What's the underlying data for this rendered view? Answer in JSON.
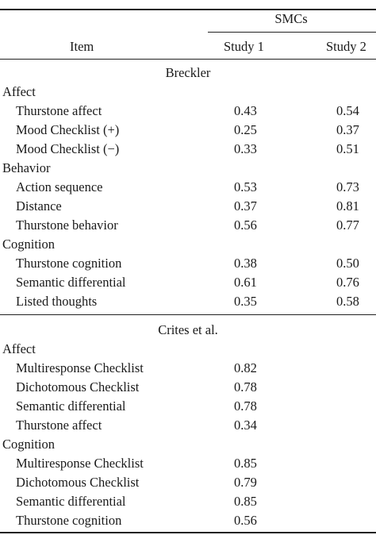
{
  "header": {
    "group_label": "SMCs",
    "item_label": "Item",
    "study1_label": "Study 1",
    "study2_label": "Study 2"
  },
  "sections": [
    {
      "title": "Breckler",
      "groups": [
        {
          "name": "Affect",
          "rows": [
            {
              "item": "Thurstone affect",
              "study1": "0.43",
              "study2": "0.54"
            },
            {
              "item": "Mood Checklist (+)",
              "study1": "0.25",
              "study2": "0.37"
            },
            {
              "item": "Mood Checklist (−)",
              "study1": "0.33",
              "study2": "0.51"
            }
          ]
        },
        {
          "name": "Behavior",
          "rows": [
            {
              "item": "Action sequence",
              "study1": "0.53",
              "study2": "0.73"
            },
            {
              "item": "Distance",
              "study1": "0.37",
              "study2": "0.81"
            },
            {
              "item": "Thurstone behavior",
              "study1": "0.56",
              "study2": "0.77"
            }
          ]
        },
        {
          "name": "Cognition",
          "rows": [
            {
              "item": "Thurstone cognition",
              "study1": "0.38",
              "study2": "0.50"
            },
            {
              "item": "Semantic differential",
              "study1": "0.61",
              "study2": "0.76"
            },
            {
              "item": "Listed thoughts",
              "study1": "0.35",
              "study2": "0.58"
            }
          ]
        }
      ]
    },
    {
      "title": "Crites et al.",
      "groups": [
        {
          "name": "Affect",
          "rows": [
            {
              "item": "Multiresponse Checklist",
              "study1": "0.82",
              "study2": ""
            },
            {
              "item": "Dichotomous Checklist",
              "study1": "0.78",
              "study2": ""
            },
            {
              "item": "Semantic differential",
              "study1": "0.78",
              "study2": ""
            },
            {
              "item": "Thurstone affect",
              "study1": "0.34",
              "study2": ""
            }
          ]
        },
        {
          "name": "Cognition",
          "rows": [
            {
              "item": "Multiresponse Checklist",
              "study1": "0.85",
              "study2": ""
            },
            {
              "item": "Dichotomous Checklist",
              "study1": "0.79",
              "study2": ""
            },
            {
              "item": "Semantic differential",
              "study1": "0.85",
              "study2": ""
            },
            {
              "item": "Thurstone cognition",
              "study1": "0.56",
              "study2": ""
            }
          ]
        }
      ]
    }
  ]
}
